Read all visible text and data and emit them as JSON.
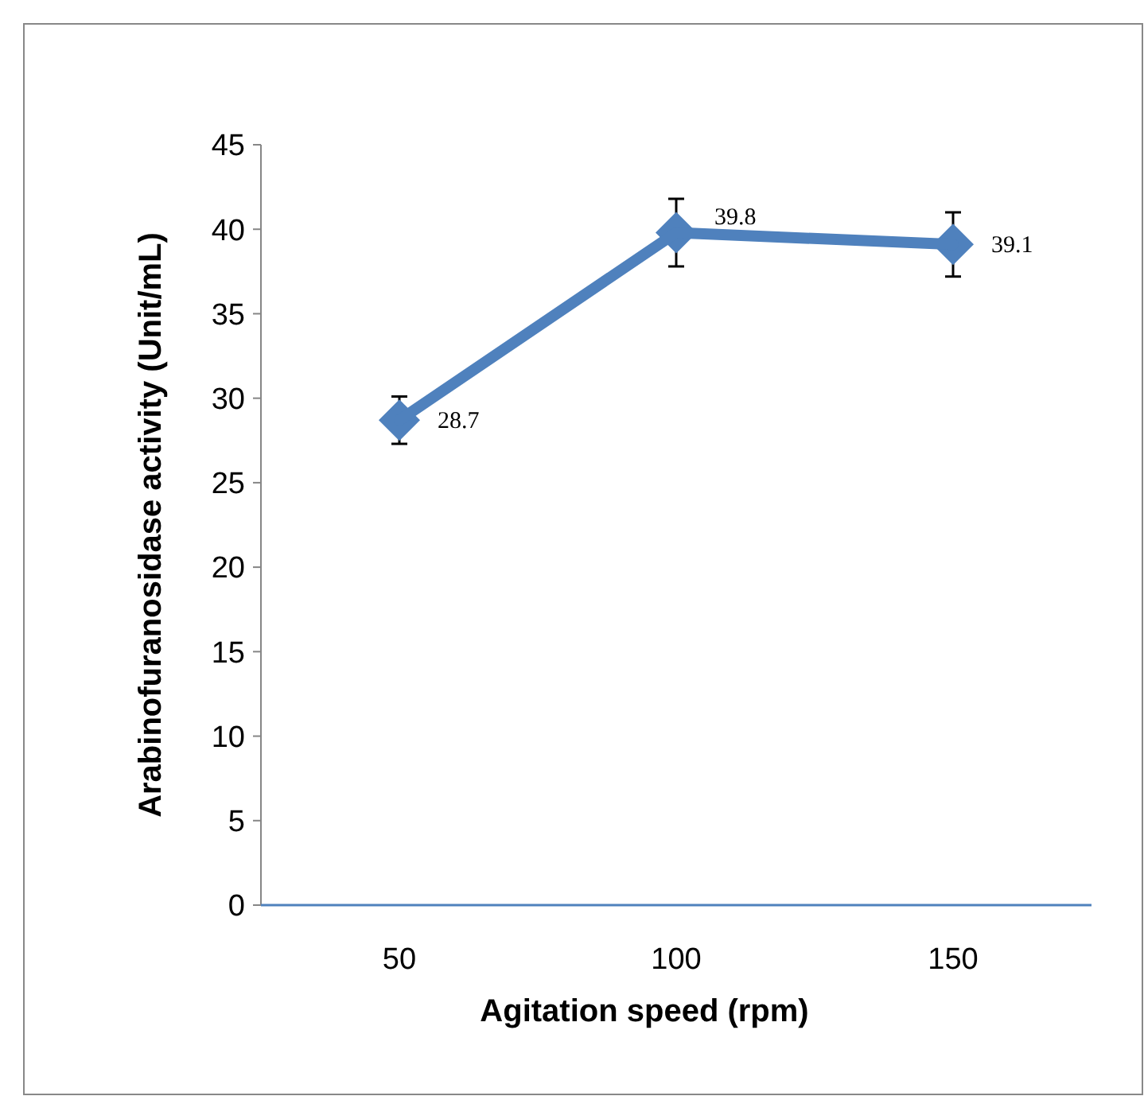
{
  "chart_data": {
    "type": "line",
    "xlabel": "Agitation speed (rpm)",
    "ylabel": "Arabinofuranosidase activity (Unit/mL)",
    "categories": [
      "50",
      "100",
      "150"
    ],
    "series": [
      {
        "color": "#4f81bd",
        "values": [
          28.7,
          39.8,
          39.1
        ],
        "errors": [
          1.4,
          2.0,
          1.9
        ]
      }
    ],
    "ylim": [
      0,
      45
    ],
    "yticks": [
      0,
      5,
      10,
      15,
      20,
      25,
      30,
      35,
      40,
      45
    ],
    "grid": false,
    "marker": "diamond",
    "line_style": "solid",
    "data_labels": true
  }
}
